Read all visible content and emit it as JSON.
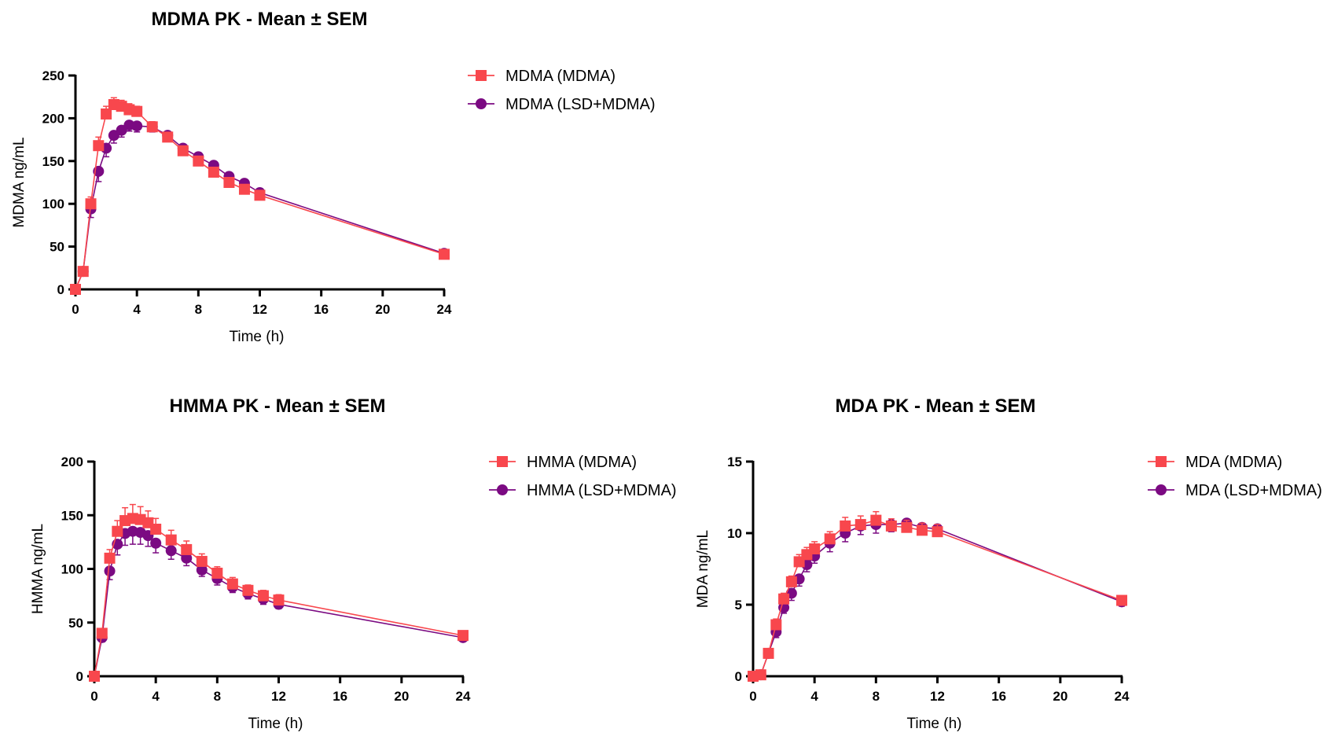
{
  "colors": {
    "mdma": "#f8474d",
    "lsd_mdma": "#7b0a82",
    "axis": "#000000"
  },
  "chart_data": [
    {
      "id": "mdma",
      "type": "line",
      "title": "MDMA PK - Mean ± SEM",
      "xlabel": "Time (h)",
      "ylabel": "MDMA ng/mL",
      "xlim": [
        0,
        24
      ],
      "ylim": [
        0,
        250
      ],
      "xticks": [
        "0",
        "4",
        "8",
        "12",
        "16",
        "20",
        "24"
      ],
      "yticks": [
        "0",
        "50",
        "100",
        "150",
        "200",
        "250"
      ],
      "ytick_values": [
        0,
        50,
        100,
        150,
        200,
        250
      ],
      "legend_position": "right",
      "error_bars": "SEM",
      "series": [
        {
          "name": "MDMA (MDMA)",
          "marker": "square",
          "color": "#f8474d",
          "x": [
            0,
            0.5,
            1,
            1.5,
            2,
            2.5,
            3,
            3.5,
            4,
            5,
            6,
            7,
            8,
            9,
            10,
            11,
            12,
            24
          ],
          "y": [
            0,
            21,
            100,
            168,
            205,
            216,
            214,
            210,
            208,
            190,
            178,
            162,
            150,
            137,
            125,
            117,
            110,
            41
          ],
          "sem": [
            0,
            3,
            8,
            10,
            9,
            8,
            7,
            7,
            6,
            6,
            5,
            5,
            5,
            4,
            4,
            4,
            4,
            2
          ]
        },
        {
          "name": "MDMA (LSD+MDMA)",
          "marker": "circle",
          "color": "#7b0a82",
          "x": [
            0,
            0.5,
            1,
            1.5,
            2,
            2.5,
            3,
            3.5,
            4,
            5,
            6,
            7,
            8,
            9,
            10,
            11,
            12,
            24
          ],
          "y": [
            0,
            21,
            94,
            138,
            165,
            180,
            186,
            192,
            191,
            190,
            180,
            165,
            155,
            145,
            132,
            124,
            113,
            42
          ],
          "sem": [
            0,
            3,
            10,
            12,
            10,
            9,
            8,
            7,
            7,
            6,
            5,
            5,
            5,
            4,
            4,
            4,
            4,
            2
          ]
        }
      ]
    },
    {
      "id": "hmma",
      "type": "line",
      "title": "HMMA PK - Mean ± SEM",
      "xlabel": "Time (h)",
      "ylabel": "HMMA ng/mL",
      "xlim": [
        0,
        24
      ],
      "ylim": [
        0,
        200
      ],
      "xticks": [
        "0",
        "4",
        "8",
        "12",
        "16",
        "20",
        "24"
      ],
      "yticks": [
        "0",
        "50",
        "100",
        "150",
        "200"
      ],
      "ytick_values": [
        0,
        50,
        100,
        150,
        200
      ],
      "legend_position": "right",
      "error_bars": "SEM",
      "series": [
        {
          "name": "HMMA (MDMA)",
          "marker": "square",
          "color": "#f8474d",
          "x": [
            0,
            0.5,
            1,
            1.5,
            2,
            2.5,
            3,
            3.5,
            4,
            5,
            6,
            7,
            8,
            9,
            10,
            11,
            12,
            24
          ],
          "y": [
            0,
            40,
            110,
            135,
            145,
            147,
            146,
            143,
            137,
            127,
            118,
            107,
            96,
            86,
            80,
            75,
            71,
            38
          ],
          "sem": [
            0,
            4,
            8,
            10,
            12,
            13,
            12,
            11,
            10,
            9,
            8,
            7,
            6,
            6,
            5,
            5,
            5,
            3
          ]
        },
        {
          "name": "HMMA (LSD+MDMA)",
          "marker": "circle",
          "color": "#7b0a82",
          "x": [
            0,
            0.5,
            1,
            1.5,
            2,
            2.5,
            3,
            3.5,
            4,
            5,
            6,
            7,
            8,
            9,
            10,
            11,
            12,
            24
          ],
          "y": [
            0,
            36,
            98,
            123,
            133,
            135,
            134,
            131,
            124,
            117,
            110,
            99,
            91,
            83,
            77,
            72,
            67,
            36
          ],
          "sem": [
            0,
            4,
            8,
            10,
            11,
            12,
            11,
            10,
            9,
            8,
            7,
            6,
            6,
            5,
            5,
            5,
            4,
            3
          ]
        }
      ]
    },
    {
      "id": "mda",
      "type": "line",
      "title": "MDA PK - Mean ± SEM",
      "xlabel": "Time (h)",
      "ylabel": "MDA ng/mL",
      "xlim": [
        0,
        24
      ],
      "ylim": [
        0,
        15
      ],
      "xticks": [
        "0",
        "4",
        "8",
        "12",
        "16",
        "20",
        "24"
      ],
      "yticks": [
        "0",
        "5",
        "10",
        "15"
      ],
      "ytick_values": [
        0,
        5,
        10,
        15
      ],
      "legend_position": "right",
      "error_bars": "SEM",
      "series": [
        {
          "name": "MDA (MDMA)",
          "marker": "square",
          "color": "#f8474d",
          "x": [
            0,
            0.5,
            1,
            1.5,
            2,
            2.5,
            3,
            3.5,
            4,
            5,
            6,
            7,
            8,
            9,
            10,
            11,
            12,
            24
          ],
          "y": [
            0,
            0.1,
            1.6,
            3.6,
            5.4,
            6.6,
            8.0,
            8.5,
            8.9,
            9.6,
            10.5,
            10.6,
            10.9,
            10.5,
            10.4,
            10.2,
            10.1,
            5.3
          ],
          "sem": [
            0,
            0.1,
            0.3,
            0.4,
            0.4,
            0.4,
            0.5,
            0.5,
            0.5,
            0.5,
            0.6,
            0.6,
            0.6,
            0.5,
            0.5,
            0.5,
            0.5,
            0.3
          ]
        },
        {
          "name": "MDA (LSD+MDMA)",
          "marker": "circle",
          "color": "#7b0a82",
          "x": [
            0,
            0.5,
            1,
            1.5,
            2,
            2.5,
            3,
            3.5,
            4,
            5,
            6,
            7,
            8,
            9,
            10,
            11,
            12,
            24
          ],
          "y": [
            0,
            0.1,
            1.6,
            3.1,
            4.8,
            5.8,
            6.8,
            7.8,
            8.4,
            9.3,
            10.0,
            10.5,
            10.6,
            10.6,
            10.7,
            10.4,
            10.3,
            5.2
          ],
          "sem": [
            0,
            0.1,
            0.3,
            0.4,
            0.4,
            0.5,
            0.5,
            0.5,
            0.5,
            0.6,
            0.6,
            0.6,
            0.6,
            0.5,
            0.5,
            0.5,
            0.5,
            0.3
          ]
        }
      ]
    }
  ]
}
